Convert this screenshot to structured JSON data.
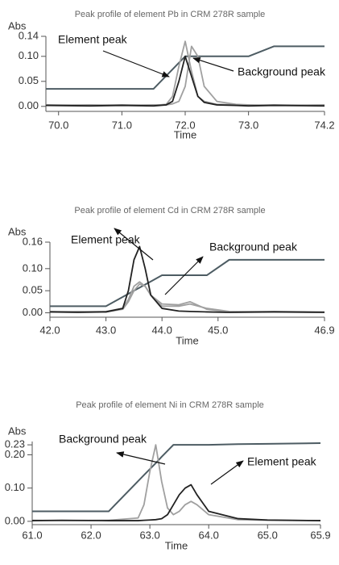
{
  "chart_data": [
    {
      "type": "line",
      "title": "Peak profile of element Pb in CRM 278R sample",
      "y_label": "Abs",
      "x_label": "Time",
      "x": [
        69.8,
        70.5,
        71.0,
        71.5,
        71.7,
        71.8,
        71.9,
        72.0,
        72.1,
        72.2,
        72.3,
        72.5,
        72.8,
        73.0,
        73.4,
        74.2
      ],
      "xlim": [
        69.8,
        74.2
      ],
      "xticks": [
        {
          "value": 70,
          "label": "70.0"
        },
        {
          "value": 71,
          "label": "71.0"
        },
        {
          "value": 72,
          "label": "72.0"
        },
        {
          "value": 73,
          "label": "73.0"
        },
        74.2
      ],
      "ylim": [
        -0.01,
        0.14
      ],
      "yticks": [
        {
          "value": 0,
          "label": "0.00"
        },
        0.05,
        {
          "value": 0.1,
          "label": "0.10"
        },
        0.14
      ],
      "series": [
        {
          "color": "#4d5c63",
          "values": [
            0.035,
            0.035,
            0.035,
            0.035,
            0.061,
            0.074,
            0.087,
            0.1,
            0.1,
            0.1,
            0.1,
            0.1,
            0.1,
            0.1,
            0.12,
            0.12
          ]
        },
        {
          "color": "#a0a0a0",
          "values": [
            0.003,
            0.002,
            0.003,
            0.002,
            0.004,
            0.02,
            0.08,
            0.13,
            0.07,
            0.02,
            0.01,
            0.004,
            0.003,
            0.002,
            0.003,
            0.002
          ]
        },
        {
          "color": "#a0a0a0",
          "values": [
            0.002,
            0.003,
            0.002,
            0.003,
            0.003,
            0.005,
            0.01,
            0.04,
            0.12,
            0.1,
            0.04,
            0.01,
            0.004,
            0.003,
            0.002,
            0.003
          ]
        },
        {
          "color": "#222222",
          "values": [
            0.002,
            0.001,
            0.002,
            0.001,
            0.003,
            0.01,
            0.05,
            0.1,
            0.06,
            0.02,
            0.008,
            0.003,
            0.002,
            0.001,
            0.002,
            0.001
          ]
        }
      ],
      "annotations": [
        {
          "text": "Element peak"
        },
        {
          "text": "Background peak"
        }
      ]
    },
    {
      "type": "line",
      "title": "Peak profile of element Cd in CRM 278R sample",
      "y_label": "Abs",
      "x_label": "Time",
      "x": [
        42.0,
        42.5,
        43.0,
        43.3,
        43.4,
        43.5,
        43.6,
        43.7,
        43.8,
        44.0,
        44.3,
        44.5,
        44.8,
        45.2,
        46.0,
        46.9
      ],
      "xlim": [
        42.0,
        46.9
      ],
      "xticks": [
        {
          "value": 42,
          "label": "42.0"
        },
        {
          "value": 43,
          "label": "43.0"
        },
        {
          "value": 44,
          "label": "44.0"
        },
        {
          "value": 45,
          "label": "45.0"
        },
        46.9
      ],
      "ylim": [
        -0.01,
        0.16
      ],
      "yticks": [
        {
          "value": 0,
          "label": "0.00"
        },
        0.05,
        {
          "value": 0.1,
          "label": "0.10"
        },
        0.16
      ],
      "series": [
        {
          "color": "#4d5c63",
          "values": [
            0.015,
            0.015,
            0.015,
            0.036,
            0.043,
            0.05,
            0.057,
            0.064,
            0.071,
            0.085,
            0.085,
            0.085,
            0.085,
            0.12,
            0.12,
            0.12
          ]
        },
        {
          "color": "#a0a0a0",
          "values": [
            0.003,
            0.002,
            0.003,
            0.01,
            0.03,
            0.06,
            0.07,
            0.06,
            0.04,
            0.015,
            0.015,
            0.02,
            0.01,
            0.003,
            0.002,
            0.002
          ]
        },
        {
          "color": "#a0a0a0",
          "values": [
            0.002,
            0.003,
            0.002,
            0.008,
            0.025,
            0.05,
            0.065,
            0.06,
            0.04,
            0.02,
            0.018,
            0.025,
            0.008,
            0.002,
            0.003,
            0.002
          ]
        },
        {
          "color": "#222222",
          "values": [
            0.002,
            0.001,
            0.002,
            0.01,
            0.05,
            0.12,
            0.15,
            0.1,
            0.04,
            0.01,
            0.004,
            0.003,
            0.002,
            0.001,
            0.002,
            0.001
          ]
        }
      ],
      "annotations": [
        {
          "text": "Element peak"
        },
        {
          "text": "Background peak"
        }
      ]
    },
    {
      "type": "line",
      "title": "Peak profile of element Ni in CRM 278R sample",
      "y_label": "Abs",
      "x_label": "Time",
      "x": [
        61.0,
        61.5,
        62.3,
        62.8,
        62.9,
        63.0,
        63.1,
        63.2,
        63.3,
        63.4,
        63.5,
        63.6,
        63.7,
        63.8,
        64.0,
        64.5,
        65.0,
        65.9
      ],
      "xlim": [
        61.0,
        65.9
      ],
      "xticks": [
        {
          "value": 61,
          "label": "61.0"
        },
        {
          "value": 62,
          "label": "62.0"
        },
        {
          "value": 63,
          "label": "63.0"
        },
        {
          "value": 64,
          "label": "64.0"
        },
        {
          "value": 65,
          "label": "65.0"
        },
        65.9
      ],
      "ylim": [
        -0.01,
        0.24
      ],
      "yticks": [
        {
          "value": 0,
          "label": "0.00"
        },
        {
          "value": 0.1,
          "label": "0.10"
        },
        {
          "value": 0.2,
          "label": "0.20"
        },
        0.23
      ],
      "series": [
        {
          "color": "#4d5c63",
          "values": [
            0.03,
            0.03,
            0.03,
            0.121,
            0.139,
            0.157,
            0.175,
            0.194,
            0.212,
            0.23,
            0.23,
            0.23,
            0.23,
            0.23,
            0.23,
            0.232,
            0.233,
            0.235
          ]
        },
        {
          "color": "#a0a0a0",
          "values": [
            0.003,
            0.002,
            0.003,
            0.01,
            0.05,
            0.15,
            0.23,
            0.12,
            0.04,
            0.02,
            0.03,
            0.05,
            0.06,
            0.05,
            0.02,
            0.005,
            0.003,
            0.002
          ]
        },
        {
          "color": "#222222",
          "values": [
            0.002,
            0.003,
            0.002,
            0.002,
            0.003,
            0.004,
            0.005,
            0.008,
            0.02,
            0.05,
            0.08,
            0.1,
            0.11,
            0.08,
            0.03,
            0.008,
            0.004,
            0.002
          ]
        }
      ],
      "annotations": [
        {
          "text": "Background peak"
        },
        {
          "text": "Element peak"
        }
      ]
    }
  ]
}
